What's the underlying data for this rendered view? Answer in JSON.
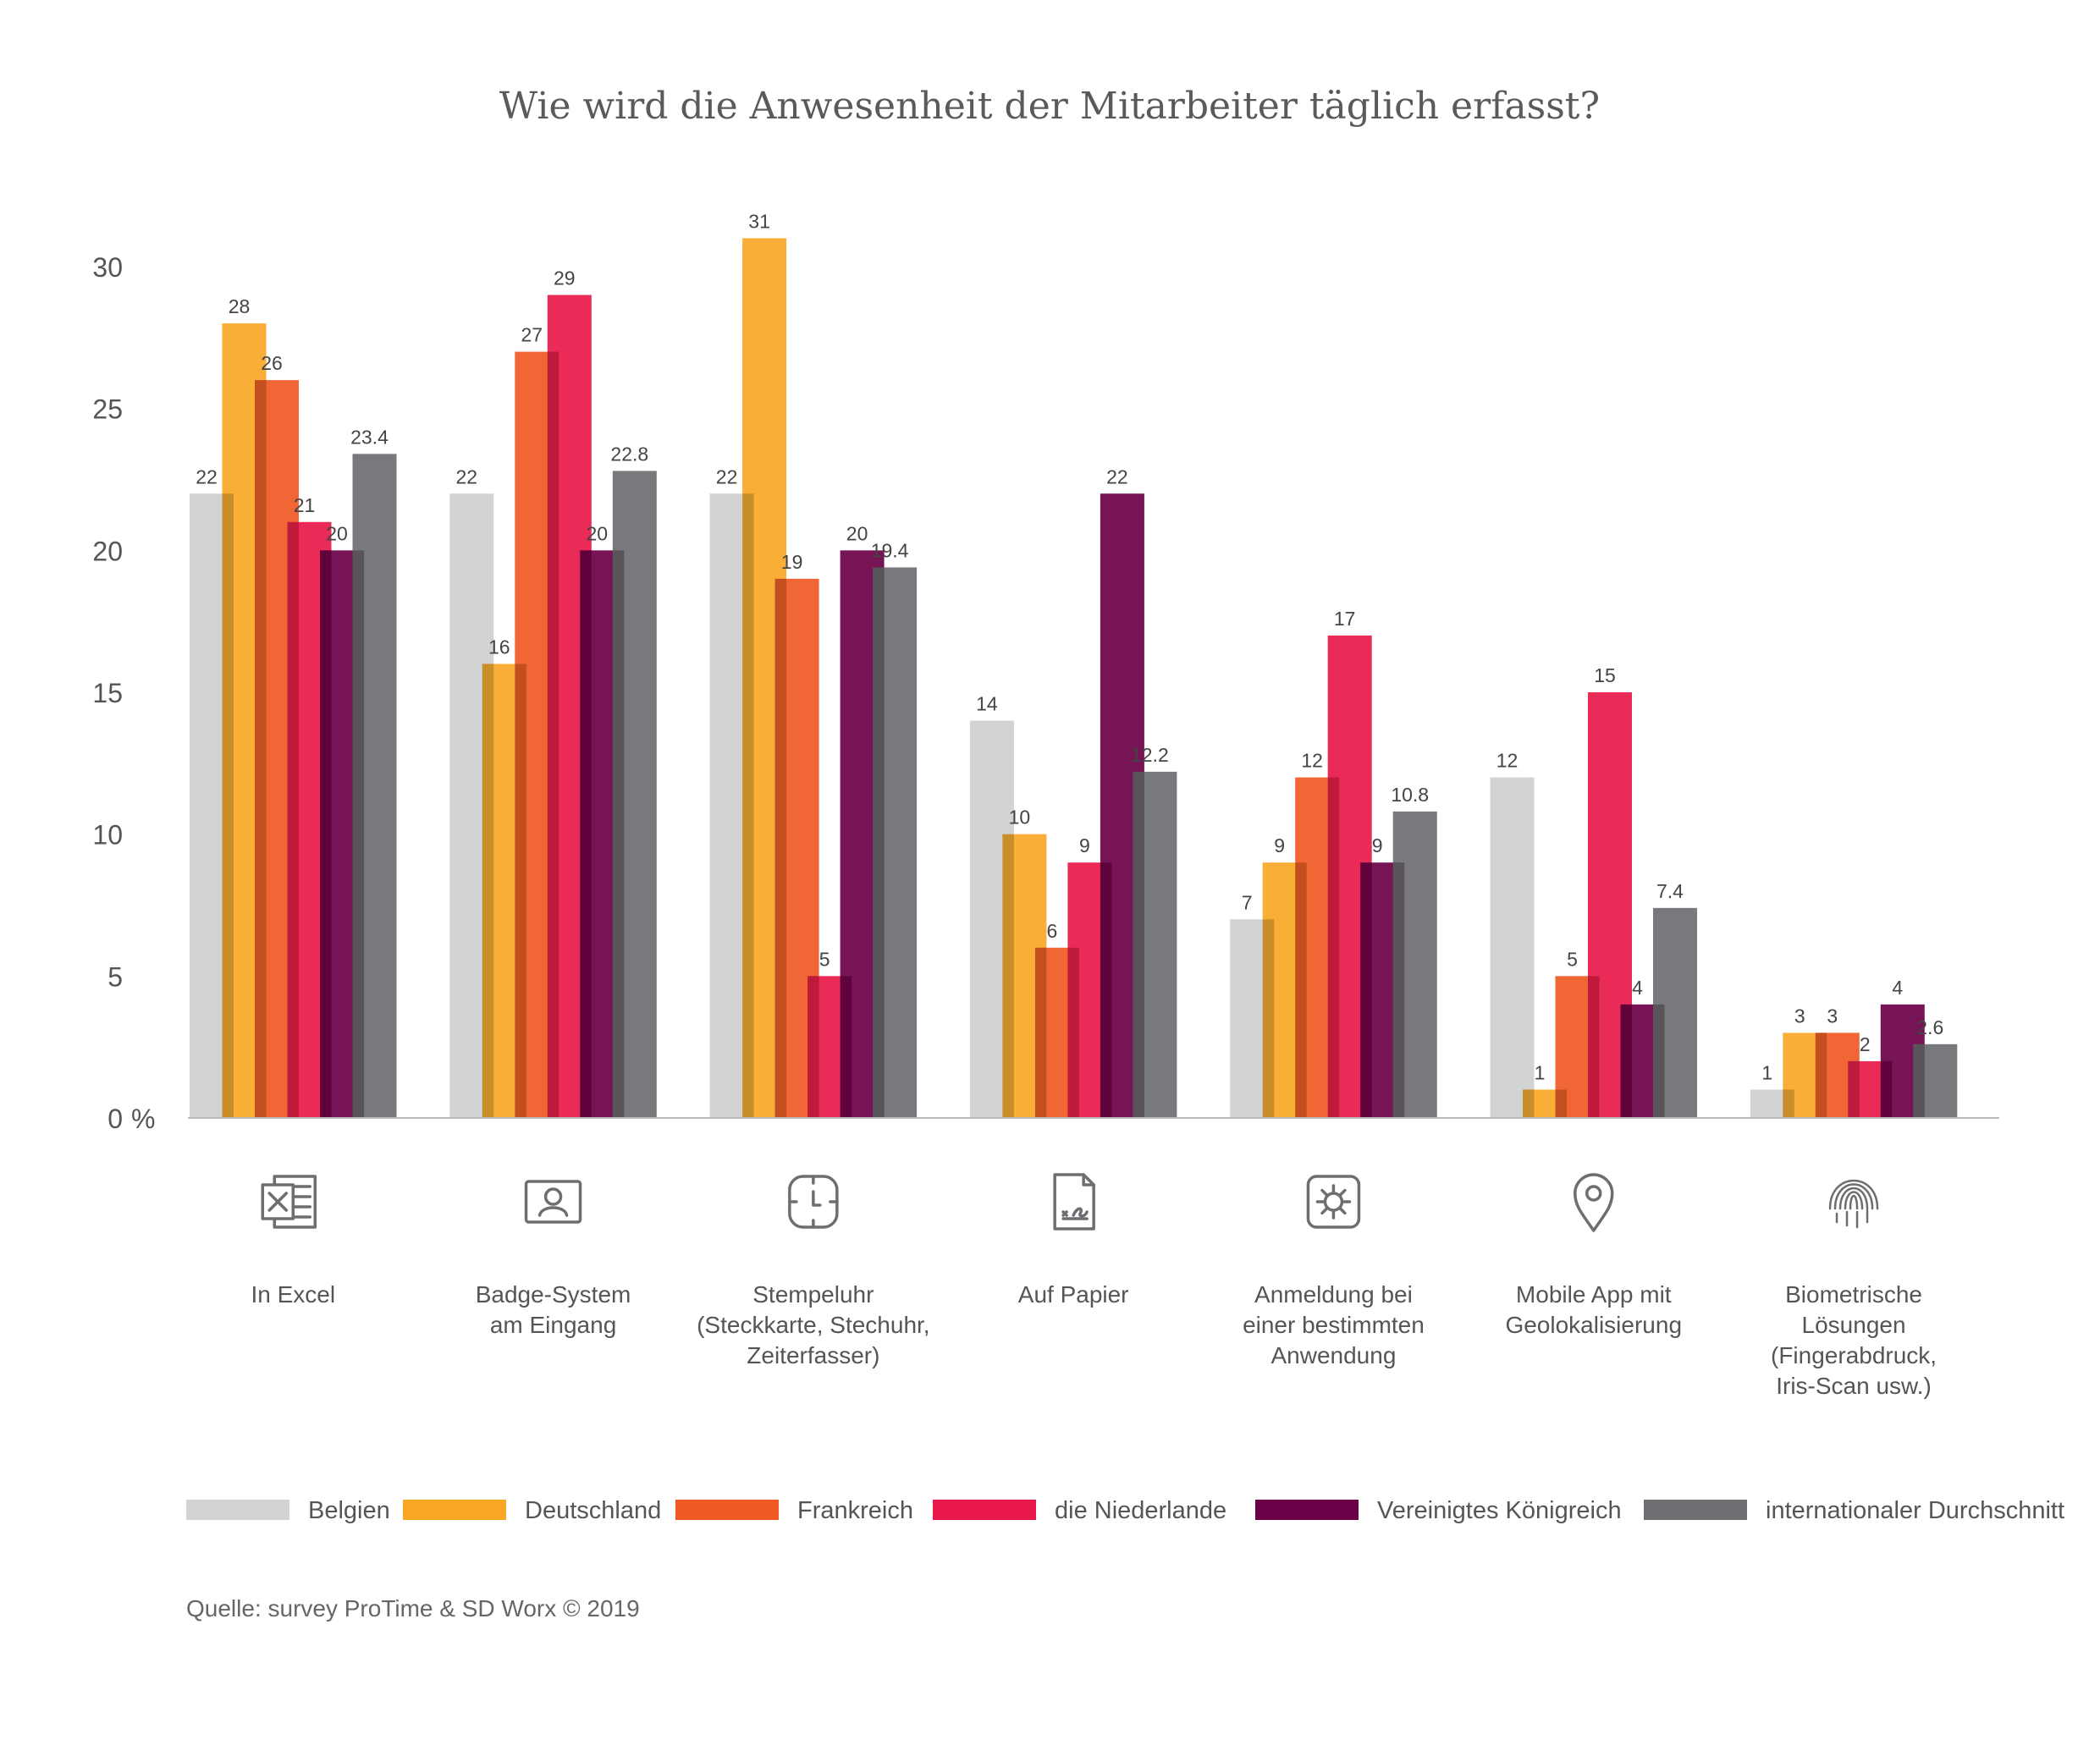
{
  "chart_data": {
    "type": "bar",
    "title": "Wie wird die Anwesenheit der Mitarbeiter täglich erfasst?",
    "ylabel": "%",
    "ylim": [
      0,
      30
    ],
    "yticks": [
      "0",
      "5",
      "10",
      "15",
      "20",
      "25",
      "30"
    ],
    "grid": false,
    "legend_position": "bottom",
    "categories": [
      [
        "In Excel"
      ],
      [
        "Badge-System",
        "am Eingang"
      ],
      [
        "Stempeluhr",
        "(Steckkarte, Stechuhr,",
        "Zeiterfasser)"
      ],
      [
        "Auf Papier"
      ],
      [
        "Anmeldung bei",
        "einer bestimmten",
        "Anwendung"
      ],
      [
        "Mobile App mit",
        "Geolokalisierung"
      ],
      [
        "Biometrische",
        "Lösungen",
        "(Fingerabdruck,",
        "Iris-Scan usw.)"
      ]
    ],
    "category_icons": [
      "excel-icon",
      "badge-icon",
      "clock-icon",
      "paper-icon",
      "gear-icon",
      "location-pin-icon",
      "fingerprint-icon"
    ],
    "series": [
      {
        "name": "Belgien",
        "color": "#d2d3d5",
        "values": [
          22,
          22,
          22,
          14,
          7,
          12,
          1
        ],
        "labels": [
          "22",
          "22",
          "22",
          "14",
          "7",
          "12",
          "1"
        ]
      },
      {
        "name": "Deutschland",
        "color": "#f9a826",
        "values": [
          28,
          16,
          31,
          10,
          9,
          1,
          3
        ],
        "labels": [
          "28",
          "16",
          "31",
          "10",
          "9",
          "1",
          "3"
        ]
      },
      {
        "name": "Frankreich",
        "color": "#ef5a24",
        "values": [
          26,
          27,
          19,
          6,
          12,
          5,
          3
        ],
        "labels": [
          "26",
          "27",
          "19",
          "6",
          "12",
          "5",
          "3"
        ]
      },
      {
        "name": "die Niederlande",
        "color": "#e8194a",
        "values": [
          21,
          29,
          5,
          9,
          17,
          15,
          2
        ],
        "labels": [
          "21",
          "29",
          "5",
          "9",
          "17",
          "15",
          "2"
        ]
      },
      {
        "name": "Vereinigtes Königreich",
        "color": "#6b0046",
        "values": [
          20,
          20,
          20,
          22,
          9,
          4,
          4
        ],
        "labels": [
          "20",
          "20",
          "20",
          "22",
          "9",
          "4",
          "4"
        ]
      },
      {
        "name": "internationaler Durchschnitt",
        "color": "#6d6e71",
        "values": [
          23.4,
          22.8,
          19.4,
          12.2,
          10.8,
          7.4,
          2.6
        ],
        "labels": [
          "23.4",
          "22.8",
          "19.4",
          "12.2",
          "10.8",
          "7.4",
          "2.6"
        ]
      }
    ],
    "source": "Quelle: survey ProTime & SD Worx © 2019"
  }
}
